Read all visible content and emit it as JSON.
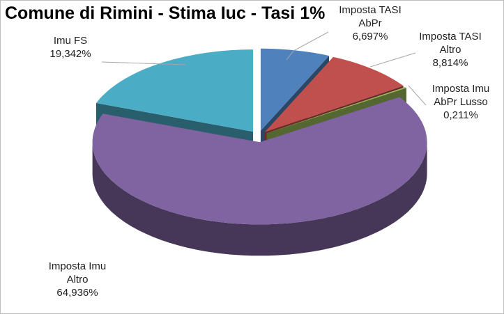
{
  "chart_data": {
    "type": "pie3d",
    "title": "Comune di Rimini - Stima Iuc - Tasi 1%",
    "categories": [
      "Imposta TASI AbPr",
      "Imposta TASI Altro",
      "Imposta Imu AbPr Lusso",
      "Imposta Imu Altro",
      "Imu FS"
    ],
    "values": [
      6.697,
      8.814,
      0.211,
      64.936,
      19.342
    ],
    "value_labels": [
      "6,697%",
      "8,814%",
      "0,211%",
      "64,936%",
      "19,342%"
    ],
    "colors": [
      "#4f81bd",
      "#c0504d",
      "#9bbb59",
      "#8064a2",
      "#4bacc6"
    ]
  }
}
